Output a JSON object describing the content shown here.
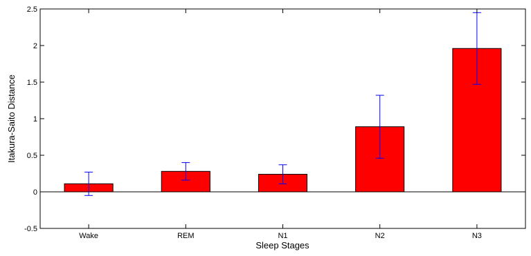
{
  "chart_data": {
    "type": "bar",
    "xlabel": "Sleep Stages",
    "ylabel": "Itakura-Saito Distance",
    "categories": [
      "Wake",
      "REM",
      "N1",
      "N2",
      "N3"
    ],
    "values": [
      0.11,
      0.28,
      0.24,
      0.89,
      1.96
    ],
    "errors": [
      0.16,
      0.12,
      0.13,
      0.43,
      0.49
    ],
    "ylim": [
      -0.5,
      2.5
    ],
    "yticks": [
      -0.5,
      0,
      0.5,
      1,
      1.5,
      2,
      2.5
    ],
    "ytick_labels": [
      "-0.5",
      "0",
      "0.5",
      "1",
      "1.5",
      "2",
      "2.5"
    ],
    "bar_color": "#ff0000",
    "errorbar_color": "#0000ff",
    "grid": false,
    "legend": null
  }
}
